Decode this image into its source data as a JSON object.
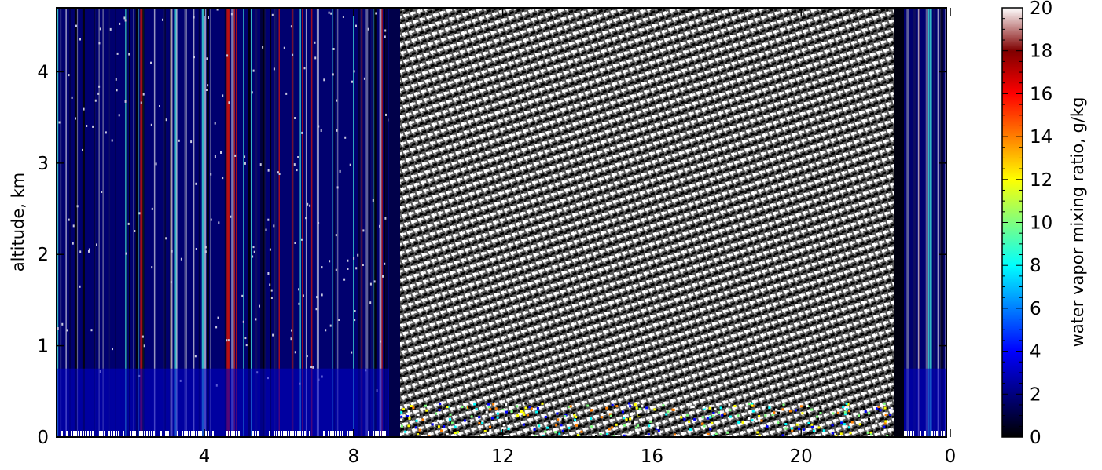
{
  "figure": {
    "colormap": [
      "#000000",
      "#00007f",
      "#0000ff",
      "#007fff",
      "#00ffff",
      "#7fff7f",
      "#ffff00",
      "#ff7f00",
      "#ff0000",
      "#7f0000",
      "#ffffff"
    ]
  },
  "chart_data": {
    "type": "heatmap",
    "title": "",
    "xlabel": "",
    "ylabel": "altitude, km",
    "x_tick_labels": [
      "4",
      "8",
      "12",
      "16",
      "20",
      "0"
    ],
    "y_ticks": [
      0,
      1,
      2,
      3,
      4
    ],
    "ylim": [
      0,
      4.7
    ],
    "colorbar": {
      "label": "water vapor mixing ratio, g/kg",
      "ticks": [
        0,
        2,
        4,
        6,
        8,
        10,
        12,
        14,
        16,
        18,
        20
      ],
      "range": [
        0,
        20
      ],
      "colormap": "jet"
    },
    "regions": [
      {
        "hours": "0-9.3",
        "appearance": "dark blue, low mixing ratio (~0-1 g/kg) with scattered vertical streaks; brighter blue near surface"
      },
      {
        "hours": "9.3-22.5",
        "appearance": "black/white speckled noise (saturated/invalid retrieval)"
      },
      {
        "hours": "22.5-0",
        "appearance": "dark blue with some bright streaks, similar to first segment"
      }
    ]
  }
}
